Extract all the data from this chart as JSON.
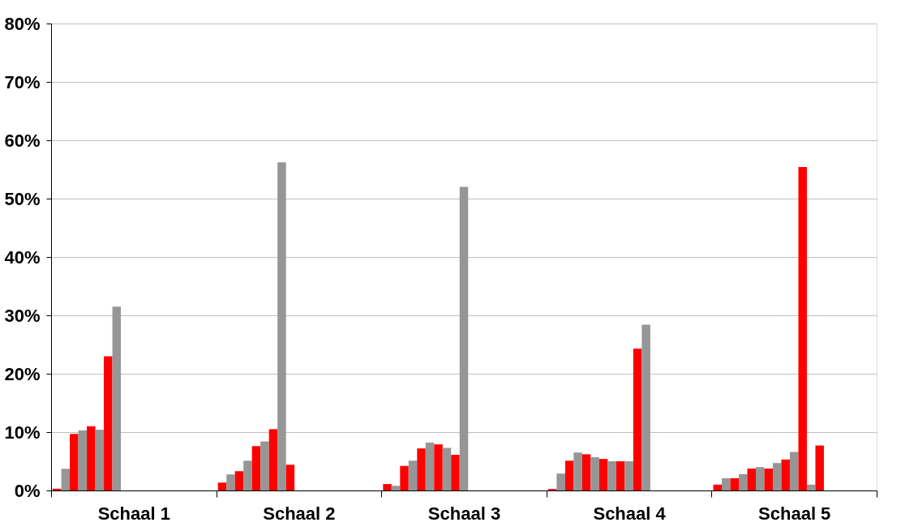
{
  "chart_data": {
    "type": "bar",
    "categories": [
      "Schaal 1",
      "Schaal 2",
      "Schaal 3",
      "Schaal 4",
      "Schaal 5"
    ],
    "series": [
      {
        "color": "#ff0000",
        "values": [
          0.3,
          1.35,
          1.1,
          0.25,
          1.0
        ]
      },
      {
        "color": "#969696",
        "values": [
          3.7,
          2.75,
          0.8,
          2.9,
          2.1
        ]
      },
      {
        "color": "#ff0000",
        "values": [
          9.7,
          3.3,
          4.2,
          5.1,
          2.1
        ]
      },
      {
        "color": "#969696",
        "values": [
          10.3,
          5.1,
          5.1,
          6.5,
          2.8
        ]
      },
      {
        "color": "#ff0000",
        "values": [
          11.0,
          7.6,
          7.2,
          6.2,
          3.75
        ]
      },
      {
        "color": "#969696",
        "values": [
          10.4,
          8.4,
          8.2,
          5.7,
          4.0
        ]
      },
      {
        "color": "#ff0000",
        "values": [
          23.0,
          10.5,
          7.9,
          5.4,
          3.75
        ]
      },
      {
        "color": "#969696",
        "values": [
          31.5,
          56.2,
          7.3,
          5.0,
          4.7
        ]
      },
      {
        "color": "#ff0000",
        "values": [
          null,
          4.4,
          6.1,
          5.0,
          5.3
        ]
      },
      {
        "color": "#969696",
        "values": [
          null,
          null,
          52.0,
          5.0,
          6.6
        ]
      },
      {
        "color": "#ff0000",
        "values": [
          null,
          null,
          null,
          24.3,
          55.4
        ]
      },
      {
        "color": "#969696",
        "values": [
          null,
          null,
          null,
          28.4,
          1.0
        ]
      },
      {
        "color": "#ff0000",
        "values": [
          null,
          null,
          null,
          null,
          7.7
        ]
      },
      {
        "color": "#969696",
        "values": [
          null,
          null,
          null,
          null,
          null
        ]
      },
      {
        "color": "#ff0000",
        "values": [
          null,
          null,
          null,
          null,
          null
        ]
      },
      {
        "color": "#969696",
        "values": [
          null,
          null,
          null,
          null,
          null
        ]
      },
      {
        "color": "#ff0000",
        "values": [
          null,
          null,
          null,
          null,
          null
        ]
      },
      {
        "color": "#969696",
        "values": [
          null,
          null,
          null,
          null,
          null
        ]
      },
      {
        "color": "#ff0000",
        "values": [
          null,
          null,
          null,
          null,
          null
        ]
      }
    ],
    "ylim": [
      0,
      80
    ],
    "yticks": [
      {
        "value": 0,
        "label": "0%"
      },
      {
        "value": 10,
        "label": "10%"
      },
      {
        "value": 20,
        "label": "20%"
      },
      {
        "value": 30,
        "label": "30%"
      },
      {
        "value": 40,
        "label": "40%"
      },
      {
        "value": 50,
        "label": "50%"
      },
      {
        "value": 60,
        "label": "60%"
      },
      {
        "value": 70,
        "label": "70%"
      },
      {
        "value": 80,
        "label": "80%"
      }
    ],
    "grid": "y",
    "legend": false
  }
}
